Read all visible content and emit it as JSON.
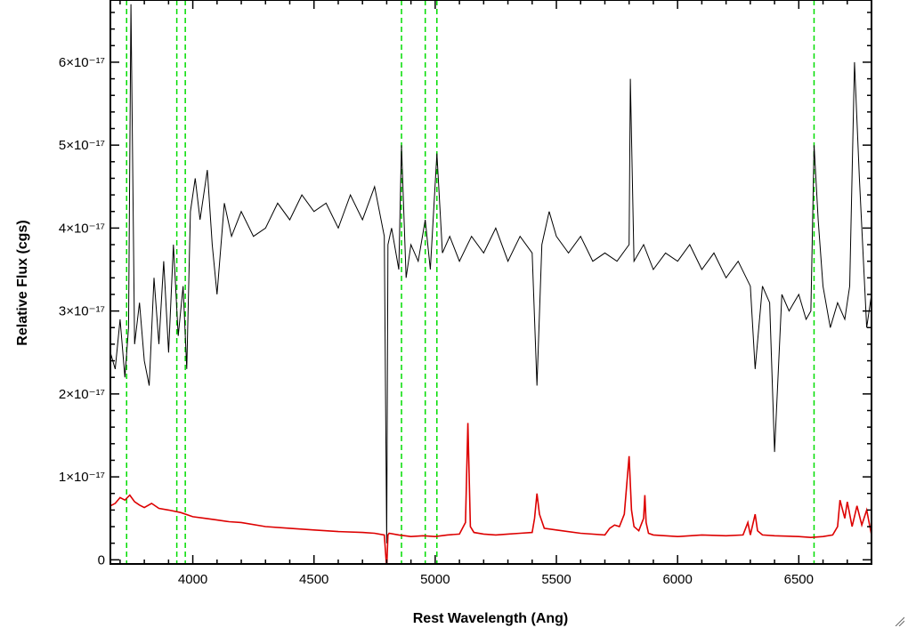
{
  "chart_data": {
    "type": "line",
    "title": "",
    "xlabel": "Rest Wavelength (Ang)",
    "ylabel": "Relative Flux (cgs)",
    "xlim": [
      3660,
      6800
    ],
    "ylim": [
      -5e-19,
      6.75e-17
    ],
    "x_ticks": [
      {
        "value": 4000,
        "label": "4000"
      },
      {
        "value": 4500,
        "label": "4500"
      },
      {
        "value": 5000,
        "label": "5000"
      },
      {
        "value": 5500,
        "label": "5500"
      },
      {
        "value": 6000,
        "label": "6000"
      },
      {
        "value": 6500,
        "label": "6500"
      }
    ],
    "y_ticks": [
      {
        "value": 0,
        "label": "0"
      },
      {
        "value": 1e-17,
        "label": "1×10⁻¹⁷"
      },
      {
        "value": 2e-17,
        "label": "2×10⁻¹⁷"
      },
      {
        "value": 3e-17,
        "label": "3×10⁻¹⁷"
      },
      {
        "value": 4e-17,
        "label": "4×10⁻¹⁷"
      },
      {
        "value": 5e-17,
        "label": "5×10⁻¹⁷"
      },
      {
        "value": 6e-17,
        "label": "6×10⁻¹⁷"
      }
    ],
    "reference_lines_x": [
      3727,
      3934,
      3969,
      4861,
      4959,
      5007,
      6563
    ],
    "reference_line_color": "#00dd00",
    "series": [
      {
        "color": "#000000",
        "x": [
          3660,
          3680,
          3700,
          3720,
          3735,
          3745,
          3760,
          3780,
          3800,
          3820,
          3840,
          3860,
          3880,
          3900,
          3920,
          3940,
          3960,
          3975,
          3990,
          4010,
          4030,
          4060,
          4080,
          4100,
          4130,
          4160,
          4200,
          4250,
          4300,
          4350,
          4400,
          4450,
          4500,
          4550,
          4600,
          4650,
          4700,
          4750,
          4790,
          4800,
          4805,
          4820,
          4850,
          4861,
          4880,
          4900,
          4930,
          4959,
          4980,
          5007,
          5030,
          5060,
          5100,
          5150,
          5200,
          5250,
          5300,
          5350,
          5400,
          5420,
          5440,
          5470,
          5500,
          5550,
          5600,
          5650,
          5700,
          5750,
          5800,
          5805,
          5820,
          5860,
          5900,
          5950,
          6000,
          6050,
          6100,
          6150,
          6200,
          6250,
          6300,
          6320,
          6350,
          6380,
          6400,
          6430,
          6460,
          6500,
          6530,
          6550,
          6563,
          6580,
          6600,
          6630,
          6660,
          6690,
          6710,
          6730,
          6750,
          6780,
          6800
        ],
        "y": [
          2.5e-17,
          2.3e-17,
          2.9e-17,
          2.2e-17,
          2.8e-17,
          6.7e-17,
          2.6e-17,
          3.1e-17,
          2.4e-17,
          2.1e-17,
          3.4e-17,
          2.6e-17,
          3.6e-17,
          2.5e-17,
          3.8e-17,
          2.7e-17,
          3.3e-17,
          2.3e-17,
          4.2e-17,
          4.6e-17,
          4.1e-17,
          4.7e-17,
          3.8e-17,
          3.2e-17,
          4.3e-17,
          3.9e-17,
          4.2e-17,
          3.9e-17,
          4e-17,
          4.3e-17,
          4.1e-17,
          4.4e-17,
          4.2e-17,
          4.3e-17,
          4e-17,
          4.4e-17,
          4.1e-17,
          4.5e-17,
          3.9e-17,
          2e-18,
          3.8e-17,
          4e-17,
          3.5e-17,
          5e-17,
          3.4e-17,
          3.8e-17,
          3.6e-17,
          4.1e-17,
          3.5e-17,
          4.9e-17,
          3.7e-17,
          3.9e-17,
          3.6e-17,
          3.9e-17,
          3.7e-17,
          4e-17,
          3.6e-17,
          3.9e-17,
          3.7e-17,
          2.1e-17,
          3.8e-17,
          4.2e-17,
          3.9e-17,
          3.7e-17,
          3.9e-17,
          3.6e-17,
          3.7e-17,
          3.6e-17,
          3.8e-17,
          5.8e-17,
          3.6e-17,
          3.8e-17,
          3.5e-17,
          3.7e-17,
          3.6e-17,
          3.8e-17,
          3.5e-17,
          3.7e-17,
          3.4e-17,
          3.6e-17,
          3.3e-17,
          2.3e-17,
          3.3e-17,
          3.1e-17,
          1.3e-17,
          3.2e-17,
          3e-17,
          3.2e-17,
          2.9e-17,
          3e-17,
          5e-17,
          4.1e-17,
          3.3e-17,
          2.8e-17,
          3.1e-17,
          2.9e-17,
          3.3e-17,
          6e-17,
          4.6e-17,
          2.8e-17,
          3.2e-17
        ]
      },
      {
        "color": "#dd0000",
        "x": [
          3660,
          3680,
          3700,
          3720,
          3740,
          3760,
          3780,
          3800,
          3830,
          3860,
          3900,
          3950,
          4000,
          4050,
          4100,
          4150,
          4200,
          4300,
          4400,
          4500,
          4600,
          4700,
          4750,
          4790,
          4800,
          4805,
          4810,
          4850,
          4900,
          4950,
          5000,
          5050,
          5100,
          5125,
          5135,
          5145,
          5160,
          5200,
          5250,
          5300,
          5350,
          5400,
          5410,
          5420,
          5430,
          5450,
          5500,
          5600,
          5700,
          5720,
          5740,
          5760,
          5780,
          5790,
          5800,
          5810,
          5820,
          5840,
          5860,
          5865,
          5870,
          5880,
          5900,
          6000,
          6100,
          6200,
          6270,
          6290,
          6300,
          6320,
          6330,
          6350,
          6400,
          6500,
          6550,
          6600,
          6640,
          6660,
          6670,
          6690,
          6700,
          6720,
          6740,
          6760,
          6780,
          6800
        ],
        "y": [
          6.5e-18,
          6.8e-18,
          7.5e-18,
          7.2e-18,
          7.8e-18,
          7e-18,
          6.6e-18,
          6.3e-18,
          6.8e-18,
          6.2e-18,
          6e-18,
          5.7e-18,
          5.2e-18,
          5e-18,
          4.8e-18,
          4.6e-18,
          4.5e-18,
          4e-18,
          3.8e-18,
          3.6e-18,
          3.4e-18,
          3.3e-18,
          3.2e-18,
          3e-18,
          -1e-18,
          3e-18,
          3.2e-18,
          3e-18,
          2.8e-18,
          2.9e-18,
          2.8e-18,
          3e-18,
          3.1e-18,
          4.5e-18,
          1.65e-17,
          4e-18,
          3.3e-18,
          3.1e-18,
          3e-18,
          3.1e-18,
          3.2e-18,
          3.3e-18,
          5e-18,
          8e-18,
          5.5e-18,
          3.8e-18,
          3.6e-18,
          3.2e-18,
          3e-18,
          3.8e-18,
          4.2e-18,
          4e-18,
          5.5e-18,
          9e-18,
          1.25e-17,
          6e-18,
          4e-18,
          3.5e-18,
          5e-18,
          7.8e-18,
          4.5e-18,
          3.2e-18,
          3e-18,
          2.8e-18,
          3e-18,
          2.9e-18,
          3e-18,
          4.5e-18,
          3e-18,
          5.5e-18,
          3.5e-18,
          3e-18,
          2.9e-18,
          2.8e-18,
          2.7e-18,
          2.8e-18,
          3e-18,
          4e-18,
          7.2e-18,
          5e-18,
          7e-18,
          4e-18,
          6.5e-18,
          4.2e-18,
          6e-18,
          3e-18
        ]
      }
    ]
  }
}
